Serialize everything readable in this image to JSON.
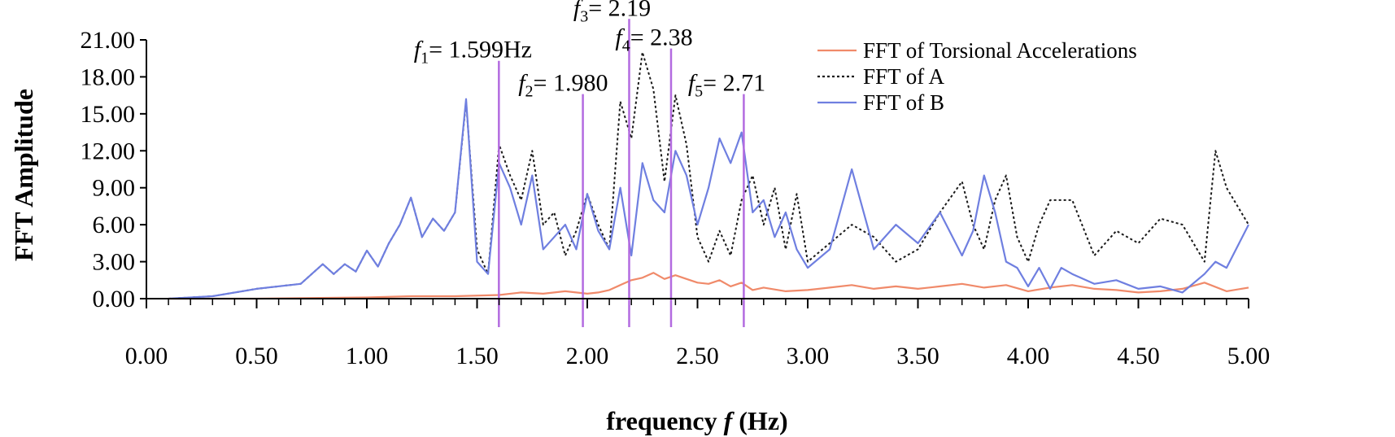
{
  "chart_data": {
    "type": "line",
    "xlabel_text": "frequency ",
    "xlabel_symbol": "f",
    "xlabel_unit": " (Hz)",
    "ylabel": "FFT Amplitude",
    "xlim": [
      0,
      5
    ],
    "ylim": [
      0,
      21
    ],
    "x_ticks": [
      "0.00",
      "0.50",
      "1.00",
      "1.50",
      "2.00",
      "2.50",
      "3.00",
      "3.50",
      "4.00",
      "4.50",
      "5.00"
    ],
    "x_tick_values": [
      0,
      0.5,
      1,
      1.5,
      2,
      2.5,
      3,
      3.5,
      4,
      4.5,
      5
    ],
    "y_ticks": [
      "0.00",
      "3.00",
      "6.00",
      "9.00",
      "12.00",
      "15.00",
      "18.00",
      "21.00"
    ],
    "y_tick_values": [
      0,
      3,
      6,
      9,
      12,
      15,
      18,
      21
    ],
    "legend_position": "top-right",
    "series": [
      {
        "name": "FFT of Torsional Accelerations",
        "color": "#f08a6a",
        "dash": "solid",
        "x": [
          0.1,
          0.5,
          1.0,
          1.2,
          1.4,
          1.6,
          1.7,
          1.8,
          1.9,
          2.0,
          2.05,
          2.1,
          2.15,
          2.2,
          2.25,
          2.3,
          2.35,
          2.4,
          2.45,
          2.5,
          2.55,
          2.6,
          2.65,
          2.7,
          2.75,
          2.8,
          2.9,
          3.0,
          3.1,
          3.2,
          3.3,
          3.4,
          3.5,
          3.6,
          3.7,
          3.8,
          3.9,
          4.0,
          4.1,
          4.2,
          4.3,
          4.4,
          4.5,
          4.6,
          4.7,
          4.8,
          4.9,
          5.0
        ],
        "y": [
          0,
          0,
          0.1,
          0.2,
          0.2,
          0.3,
          0.5,
          0.4,
          0.6,
          0.4,
          0.5,
          0.7,
          1.1,
          1.5,
          1.7,
          2.1,
          1.6,
          1.9,
          1.6,
          1.3,
          1.2,
          1.5,
          1.0,
          1.3,
          0.7,
          0.9,
          0.6,
          0.7,
          0.9,
          1.1,
          0.8,
          1.0,
          0.8,
          1.0,
          1.2,
          0.9,
          1.1,
          0.6,
          0.9,
          1.1,
          0.8,
          0.7,
          0.5,
          0.6,
          0.8,
          1.3,
          0.6,
          0.9
        ]
      },
      {
        "name": "FFT of A",
        "color": "#1a1a1a",
        "dash": "dotted",
        "x": [
          0.1,
          0.3,
          0.5,
          0.7,
          0.8,
          0.85,
          0.9,
          0.95,
          1.0,
          1.05,
          1.1,
          1.15,
          1.2,
          1.25,
          1.3,
          1.35,
          1.4,
          1.45,
          1.5,
          1.55,
          1.6,
          1.65,
          1.7,
          1.75,
          1.8,
          1.85,
          1.9,
          1.95,
          2.0,
          2.05,
          2.1,
          2.15,
          2.2,
          2.25,
          2.3,
          2.35,
          2.4,
          2.45,
          2.5,
          2.55,
          2.6,
          2.65,
          2.7,
          2.75,
          2.8,
          2.85,
          2.9,
          2.95,
          3.0,
          3.1,
          3.2,
          3.3,
          3.4,
          3.5,
          3.6,
          3.7,
          3.75,
          3.8,
          3.85,
          3.9,
          3.95,
          4.0,
          4.05,
          4.1,
          4.15,
          4.2,
          4.3,
          4.4,
          4.5,
          4.6,
          4.7,
          4.8,
          4.85,
          4.9,
          5.0
        ],
        "y": [
          0,
          0.2,
          0.8,
          1.2,
          2.8,
          2.0,
          2.8,
          2.2,
          3.9,
          2.6,
          4.5,
          6.0,
          8.2,
          5.0,
          6.5,
          5.5,
          7.0,
          16.0,
          4.0,
          2.0,
          12.5,
          10.0,
          8.0,
          12.0,
          6.0,
          7.0,
          3.5,
          5.5,
          8.5,
          6.0,
          4.0,
          16.0,
          13.0,
          20.0,
          17.0,
          9.5,
          16.5,
          12.5,
          5.0,
          3.0,
          5.5,
          3.5,
          8.0,
          10.0,
          6.0,
          9.0,
          4.0,
          8.5,
          3.0,
          4.5,
          6.0,
          5.0,
          3.0,
          4.0,
          7.0,
          9.5,
          6.0,
          4.0,
          8.0,
          10.0,
          5.0,
          3.0,
          6.0,
          8.0,
          8.0,
          8.0,
          3.5,
          5.5,
          4.5,
          6.5,
          6.0,
          3.0,
          12.0,
          9.0,
          6.0
        ]
      },
      {
        "name": "FFT of B",
        "color": "#6f7fe0",
        "dash": "solid",
        "x": [
          0.1,
          0.3,
          0.5,
          0.7,
          0.8,
          0.85,
          0.9,
          0.95,
          1.0,
          1.05,
          1.1,
          1.15,
          1.2,
          1.25,
          1.3,
          1.35,
          1.4,
          1.45,
          1.5,
          1.55,
          1.6,
          1.65,
          1.7,
          1.75,
          1.8,
          1.85,
          1.9,
          1.95,
          2.0,
          2.05,
          2.1,
          2.15,
          2.2,
          2.25,
          2.3,
          2.35,
          2.4,
          2.45,
          2.5,
          2.55,
          2.6,
          2.65,
          2.7,
          2.75,
          2.8,
          2.85,
          2.9,
          2.95,
          3.0,
          3.1,
          3.2,
          3.3,
          3.4,
          3.5,
          3.6,
          3.7,
          3.75,
          3.8,
          3.85,
          3.9,
          3.95,
          4.0,
          4.05,
          4.1,
          4.15,
          4.2,
          4.3,
          4.4,
          4.5,
          4.6,
          4.7,
          4.8,
          4.85,
          4.9,
          5.0
        ],
        "y": [
          0,
          0.2,
          0.8,
          1.2,
          2.8,
          2.0,
          2.8,
          2.2,
          3.9,
          2.6,
          4.5,
          6.0,
          8.2,
          5.0,
          6.5,
          5.5,
          7.0,
          16.2,
          3.0,
          2.0,
          11.0,
          9.0,
          6.0,
          10.0,
          4.0,
          5.0,
          6.0,
          4.0,
          8.5,
          5.5,
          4.0,
          9.0,
          3.5,
          11.0,
          8.0,
          7.0,
          12.0,
          10.0,
          6.0,
          9.0,
          13.0,
          11.0,
          13.5,
          7.0,
          8.0,
          5.0,
          7.0,
          4.0,
          2.5,
          4.0,
          10.5,
          4.0,
          6.0,
          4.5,
          7.0,
          3.5,
          5.5,
          10.0,
          7.0,
          3.0,
          2.5,
          1.0,
          2.5,
          0.8,
          2.5,
          2.0,
          1.2,
          1.5,
          0.8,
          1.0,
          0.5,
          2.0,
          3.0,
          2.5,
          6.0
        ]
      }
    ],
    "markers": [
      {
        "sub": "1",
        "value_text": "1.599Hz",
        "x": 1.599,
        "top": 19.3
      },
      {
        "sub": "2",
        "value_text": "1.980",
        "x": 1.98,
        "top": 16.6
      },
      {
        "sub": "3",
        "value_text": "2.19",
        "x": 2.19,
        "top": 22.7
      },
      {
        "sub": "4",
        "value_text": "2.38",
        "x": 2.38,
        "top": 20.3
      },
      {
        "sub": "5",
        "value_text": "2.71",
        "x": 2.71,
        "top": 16.6
      }
    ],
    "marker_symbol": "f",
    "marker_color": "#b36be0"
  }
}
